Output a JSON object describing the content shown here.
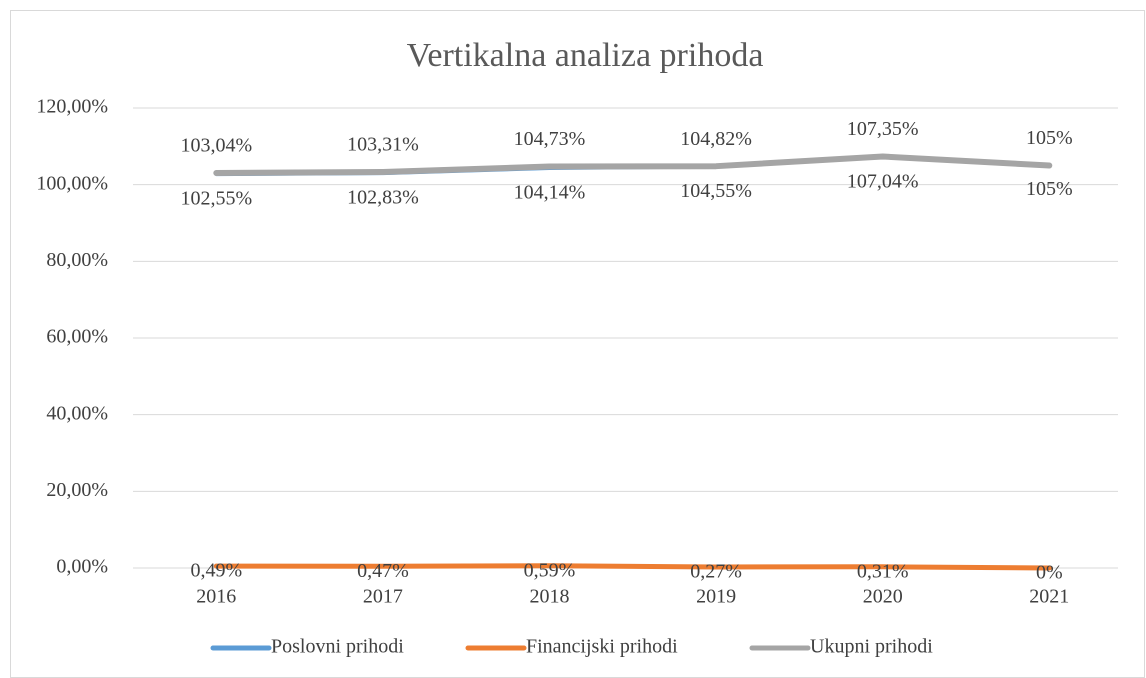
{
  "chart_data": {
    "type": "line",
    "title": "Vertikalna analiza prihoda",
    "categories": [
      "2016",
      "2017",
      "2018",
      "2019",
      "2020",
      "2021"
    ],
    "series": [
      {
        "name": "Poslovni prihodi",
        "color": "#5b9bd5",
        "values": [
          102.55,
          102.83,
          104.14,
          104.55,
          107.04,
          105
        ],
        "value_labels": [
          "102,55%",
          "102,83%",
          "104,14%",
          "104,55%",
          "107,04%",
          "105%"
        ]
      },
      {
        "name": "Financijski prihodi",
        "color": "#ed7d31",
        "values": [
          0.49,
          0.47,
          0.59,
          0.27,
          0.31,
          0
        ],
        "value_labels": [
          "0,49%",
          "0,47%",
          "0,59%",
          "0,27%",
          "0,31%",
          "0%"
        ]
      },
      {
        "name": "Ukupni prihodi",
        "color": "#a5a5a5",
        "values": [
          103.04,
          103.31,
          104.73,
          104.82,
          107.35,
          105
        ],
        "value_labels": [
          "103,04%",
          "103,31%",
          "104,73%",
          "104,82%",
          "107,35%",
          "105%"
        ]
      }
    ],
    "ylim": [
      0,
      120
    ],
    "yticks": [
      {
        "value": 0,
        "label": "0,00%"
      },
      {
        "value": 20,
        "label": "20,00%"
      },
      {
        "value": 40,
        "label": "40,00%"
      },
      {
        "value": 60,
        "label": "60,00%"
      },
      {
        "value": 80,
        "label": "80,00%"
      },
      {
        "value": 100,
        "label": "100,00%"
      },
      {
        "value": 120,
        "label": "120,00%"
      }
    ],
    "grid": true,
    "legend": "bottom"
  }
}
